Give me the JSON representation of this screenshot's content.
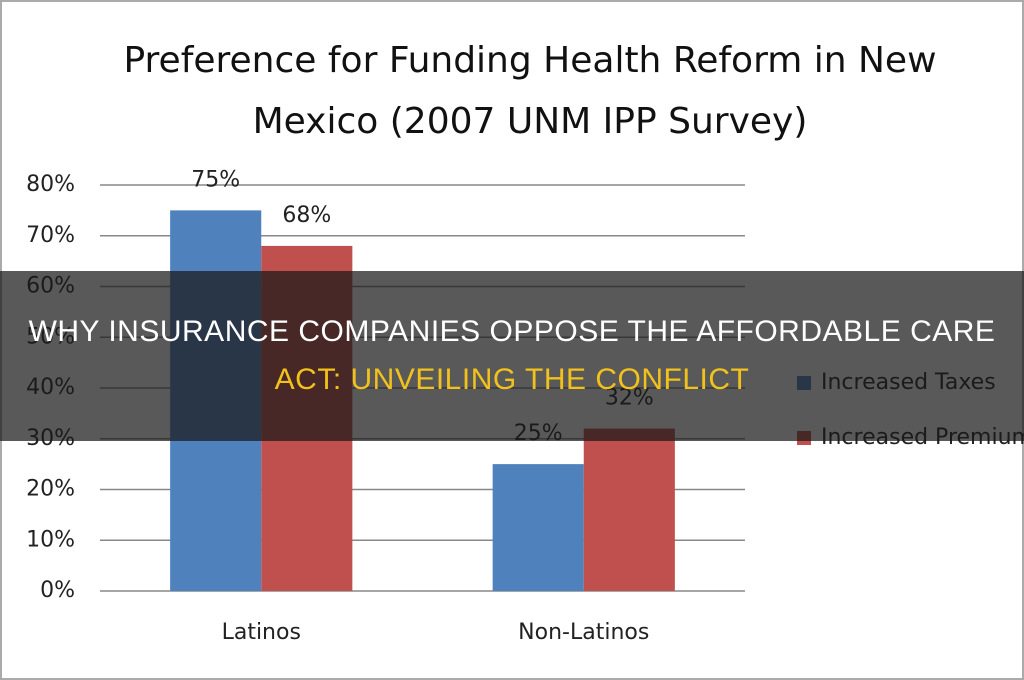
{
  "chart_data": {
    "type": "bar",
    "title": "Preference for Funding Health Reform in New Mexico (2007 UNM IPP Survey)",
    "categories": [
      "Latinos",
      "Non-Latinos"
    ],
    "series": [
      {
        "name": "Increased Taxes",
        "color": "#4f81bd",
        "values": [
          75,
          25
        ],
        "value_labels": [
          "75%",
          "25%"
        ]
      },
      {
        "name": "Increased Premiums",
        "color": "#c0504d",
        "values": [
          68,
          32
        ],
        "value_labels": [
          "68%",
          "32%"
        ]
      }
    ],
    "ylim": [
      0,
      80
    ],
    "yticks": [
      {
        "value": 0,
        "label": "0%"
      },
      {
        "value": 10,
        "label": "10%"
      },
      {
        "value": 20,
        "label": "20%"
      },
      {
        "value": 30,
        "label": "30%"
      },
      {
        "value": 40,
        "label": "40%"
      },
      {
        "value": 50,
        "label": "50%"
      },
      {
        "value": 60,
        "label": "60%"
      },
      {
        "value": 70,
        "label": "70%"
      },
      {
        "value": 80,
        "label": "80%"
      }
    ],
    "grid": true,
    "legend": "right"
  },
  "overlay": {
    "lines": [
      "WHY INSURANCE COMPANIES OPPOSE THE AFFORDABLE CARE",
      "ACT: UNVEILING THE CONFLICT"
    ]
  }
}
